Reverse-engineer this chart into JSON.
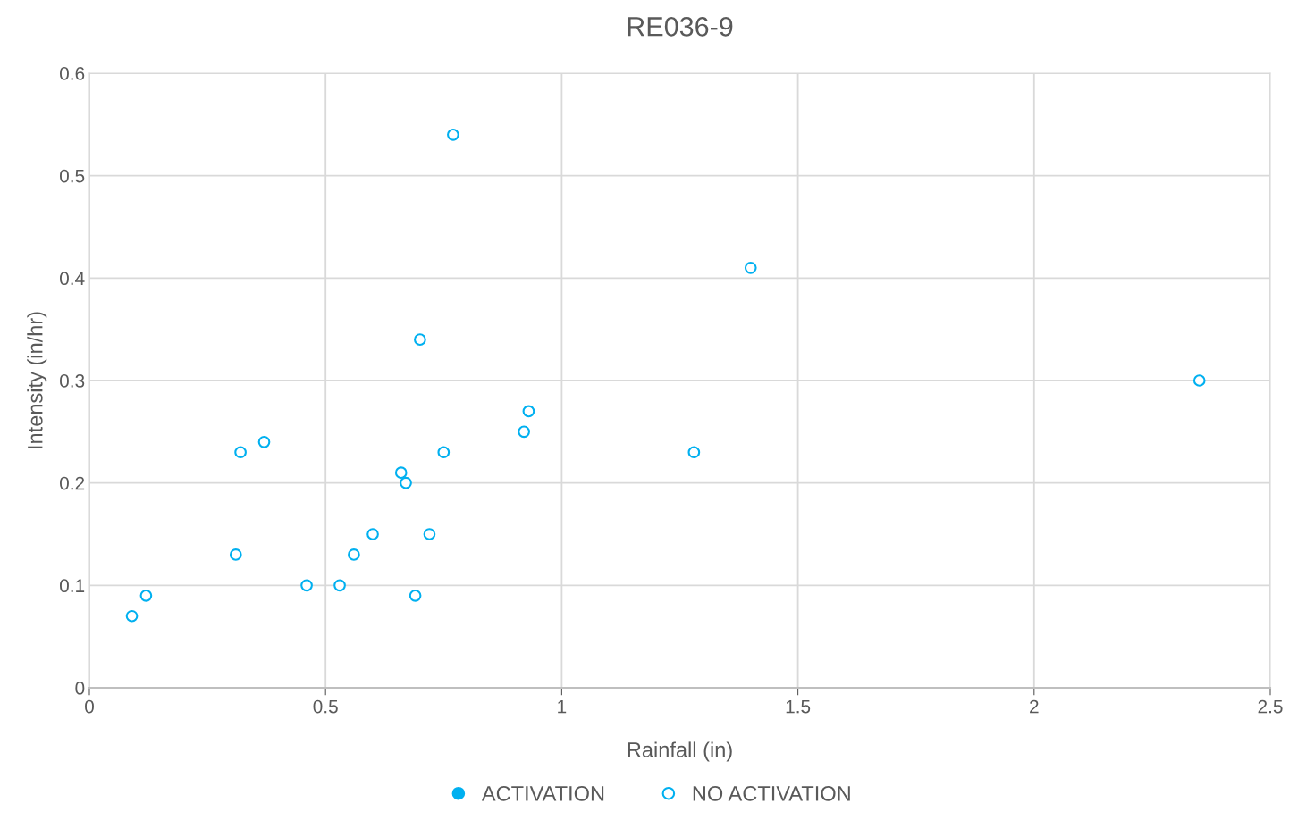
{
  "chart_data": {
    "type": "scatter",
    "title": "RE036-9",
    "xlabel": "Rainfall (in)",
    "ylabel": "Intensity (in/hr)",
    "xlim": [
      0,
      2.5
    ],
    "xticks": [
      0,
      0.5,
      1,
      1.5,
      2,
      2.5
    ],
    "ylim": [
      0,
      0.6
    ],
    "yticks": [
      0,
      0.1,
      0.2,
      0.3,
      0.4,
      0.5,
      0.6
    ],
    "grid": true,
    "legend": "bottom",
    "marker": "circle",
    "series": [
      {
        "name": "ACTIVATION",
        "color": "#00b0f0"
      },
      {
        "name": "NO ACTIVATION",
        "color": "#00b0f0",
        "x": [
          0.09,
          0.12,
          0.31,
          0.32,
          0.37,
          0.46,
          0.53,
          0.56,
          0.6,
          0.66,
          0.67,
          0.69,
          0.7,
          0.72,
          0.75,
          0.77,
          0.92,
          0.93,
          1.28,
          1.4,
          2.35
        ],
        "values": [
          0.07,
          0.09,
          0.13,
          0.23,
          0.24,
          0.1,
          0.1,
          0.13,
          0.15,
          0.21,
          0.2,
          0.09,
          0.34,
          0.15,
          0.23,
          0.54,
          0.25,
          0.27,
          0.23,
          0.41,
          0.3
        ]
      }
    ]
  }
}
